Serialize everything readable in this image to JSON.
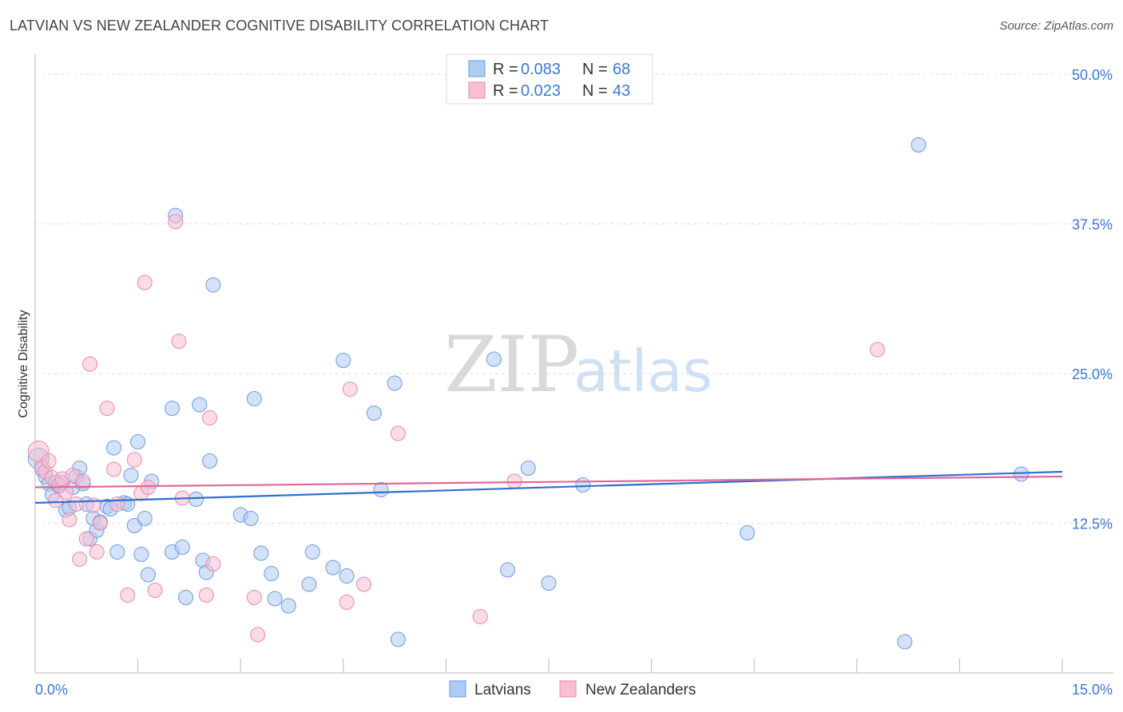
{
  "header": {
    "title": "LATVIAN VS NEW ZEALANDER COGNITIVE DISABILITY CORRELATION CHART",
    "source": "Source: ZipAtlas.com"
  },
  "watermark": {
    "zip": "ZIP",
    "atlas": "atlas"
  },
  "legend": {
    "rows": [
      {
        "r_label": "R = ",
        "r_value": "0.083",
        "n_label": "N = ",
        "n_value": "68",
        "color": "#aecbf2",
        "stroke": "#6c9be0"
      },
      {
        "r_label": "R = ",
        "r_value": "0.023",
        "n_label": "N = ",
        "n_value": "43",
        "color": "#f7c0d1",
        "stroke": "#e88aa8"
      }
    ]
  },
  "bottom_legend": {
    "items": [
      {
        "label": "Latvians",
        "color": "#aecbf2",
        "stroke": "#6c9be0"
      },
      {
        "label": "New Zealanders",
        "color": "#f7c0d1",
        "stroke": "#e88aa8"
      }
    ]
  },
  "chart_data": {
    "type": "scatter",
    "title": "LATVIAN VS NEW ZEALANDER COGNITIVE DISABILITY CORRELATION CHART",
    "xlabel": "",
    "ylabel": "Cognitive Disability",
    "xlim": [
      0,
      15
    ],
    "ylim": [
      0,
      51
    ],
    "x_tick_labels": [
      {
        "value": 0,
        "label": "0.0%"
      },
      {
        "value": 15,
        "label": "15.0%"
      }
    ],
    "y_ticks": [
      {
        "value": 12.5,
        "label": "12.5%"
      },
      {
        "value": 25.0,
        "label": "25.0%"
      },
      {
        "value": 37.5,
        "label": "37.5%"
      },
      {
        "value": 50.0,
        "label": "50.0%"
      }
    ],
    "series": [
      {
        "name": "Latvians",
        "color": "#aecbf2",
        "stroke": "#6c9be0",
        "trend": {
          "x": [
            0,
            15
          ],
          "y": [
            14.2,
            16.8
          ],
          "color": "#2f6fd0"
        },
        "points": [
          [
            0.05,
            17.9
          ],
          [
            0.1,
            17.0
          ],
          [
            0.15,
            16.4
          ],
          [
            0.2,
            15.8
          ],
          [
            0.25,
            14.9
          ],
          [
            0.3,
            15.9
          ],
          [
            0.35,
            15.6
          ],
          [
            0.4,
            15.9
          ],
          [
            0.45,
            13.6
          ],
          [
            0.5,
            13.8
          ],
          [
            0.55,
            15.5
          ],
          [
            0.6,
            16.4
          ],
          [
            0.65,
            17.1
          ],
          [
            0.7,
            15.8
          ],
          [
            0.75,
            14.1
          ],
          [
            0.8,
            11.2
          ],
          [
            0.85,
            12.9
          ],
          [
            0.9,
            11.9
          ],
          [
            0.95,
            12.6
          ],
          [
            1.05,
            13.9
          ],
          [
            1.1,
            13.7
          ],
          [
            1.15,
            18.8
          ],
          [
            1.2,
            10.1
          ],
          [
            1.3,
            14.2
          ],
          [
            1.35,
            14.1
          ],
          [
            1.4,
            16.5
          ],
          [
            1.45,
            12.3
          ],
          [
            1.5,
            19.3
          ],
          [
            1.55,
            9.9
          ],
          [
            1.6,
            12.9
          ],
          [
            1.65,
            8.2
          ],
          [
            1.7,
            16.0
          ],
          [
            2.0,
            22.1
          ],
          [
            2.0,
            10.1
          ],
          [
            2.05,
            38.2
          ],
          [
            2.15,
            10.5
          ],
          [
            2.2,
            6.3
          ],
          [
            2.35,
            14.5
          ],
          [
            2.4,
            22.4
          ],
          [
            2.45,
            9.4
          ],
          [
            2.5,
            8.4
          ],
          [
            2.55,
            17.7
          ],
          [
            2.6,
            32.4
          ],
          [
            3.0,
            13.2
          ],
          [
            3.15,
            12.9
          ],
          [
            3.2,
            22.9
          ],
          [
            3.3,
            10.0
          ],
          [
            3.45,
            8.3
          ],
          [
            3.5,
            6.2
          ],
          [
            3.7,
            5.6
          ],
          [
            4.0,
            7.4
          ],
          [
            4.05,
            10.1
          ],
          [
            4.35,
            8.8
          ],
          [
            4.5,
            26.1
          ],
          [
            4.55,
            8.1
          ],
          [
            4.95,
            21.7
          ],
          [
            5.05,
            15.3
          ],
          [
            5.25,
            24.2
          ],
          [
            5.3,
            2.8
          ],
          [
            6.7,
            26.2
          ],
          [
            7.2,
            17.1
          ],
          [
            6.9,
            8.6
          ],
          [
            7.5,
            7.5
          ],
          [
            8.0,
            15.7
          ],
          [
            10.4,
            11.7
          ],
          [
            12.9,
            44.1
          ],
          [
            12.7,
            2.6
          ],
          [
            14.4,
            16.6
          ]
        ]
      },
      {
        "name": "New Zealanders",
        "color": "#f7c0d1",
        "stroke": "#e88aa8",
        "trend": {
          "x": [
            0,
            15
          ],
          "y": [
            15.5,
            16.4
          ],
          "color": "#e0689a"
        },
        "points": [
          [
            0.05,
            18.5
          ],
          [
            0.1,
            17.2
          ],
          [
            0.15,
            16.8
          ],
          [
            0.2,
            17.7
          ],
          [
            0.25,
            16.3
          ],
          [
            0.3,
            14.4
          ],
          [
            0.35,
            15.7
          ],
          [
            0.4,
            16.2
          ],
          [
            0.45,
            15.1
          ],
          [
            0.5,
            12.8
          ],
          [
            0.55,
            16.5
          ],
          [
            0.6,
            14.1
          ],
          [
            0.65,
            9.5
          ],
          [
            0.7,
            16.0
          ],
          [
            0.75,
            11.2
          ],
          [
            0.8,
            25.8
          ],
          [
            0.85,
            14.0
          ],
          [
            0.9,
            10.1
          ],
          [
            0.95,
            12.5
          ],
          [
            1.05,
            22.1
          ],
          [
            1.15,
            17.0
          ],
          [
            1.2,
            14.1
          ],
          [
            1.35,
            6.5
          ],
          [
            1.45,
            17.8
          ],
          [
            1.55,
            15.0
          ],
          [
            1.6,
            32.6
          ],
          [
            1.65,
            15.5
          ],
          [
            1.75,
            6.9
          ],
          [
            2.05,
            37.7
          ],
          [
            2.1,
            27.7
          ],
          [
            2.15,
            14.6
          ],
          [
            2.5,
            6.5
          ],
          [
            2.55,
            21.3
          ],
          [
            2.6,
            9.1
          ],
          [
            3.2,
            6.3
          ],
          [
            3.25,
            3.2
          ],
          [
            4.55,
            5.9
          ],
          [
            4.6,
            23.7
          ],
          [
            4.8,
            7.4
          ],
          [
            5.3,
            20.0
          ],
          [
            6.5,
            4.7
          ],
          [
            7.0,
            16.0
          ],
          [
            12.3,
            27.0
          ]
        ]
      }
    ]
  }
}
